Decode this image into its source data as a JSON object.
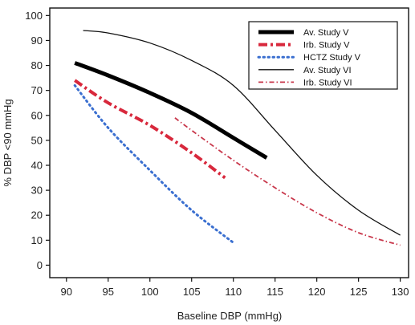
{
  "chart_data": {
    "type": "line",
    "xlabel": "Baseline DBP (mmHg)",
    "ylabel": "% DBP <90 mmHg",
    "xlim": [
      88,
      131
    ],
    "ylim": [
      -5,
      103
    ],
    "xticks": [
      90,
      95,
      100,
      105,
      110,
      115,
      120,
      125,
      130
    ],
    "yticks": [
      0,
      10,
      20,
      30,
      40,
      50,
      60,
      70,
      80,
      90,
      100
    ],
    "xtick_labels": [
      "90",
      "95",
      "100",
      "105",
      "110",
      "115",
      "120",
      "125",
      "130"
    ],
    "ytick_labels": [
      "0",
      "10",
      "20",
      "30",
      "40",
      "50",
      "60",
      "70",
      "80",
      "90",
      "100"
    ],
    "grid": false,
    "legend_position": "top-right",
    "series": [
      {
        "name": "Av. Study V",
        "color": "#000000",
        "style": "solid-thick",
        "x": [
          91,
          95,
          100,
          105,
          110,
          114
        ],
        "y": [
          81,
          76,
          69,
          61,
          51,
          43
        ]
      },
      {
        "name": "Irb. Study V",
        "color": "#d8283c",
        "style": "dash-dot-thick",
        "x": [
          91,
          95,
          100,
          105,
          109
        ],
        "y": [
          74,
          65,
          56,
          45,
          35
        ]
      },
      {
        "name": "HCTZ Study V",
        "color": "#3a6fd0",
        "style": "dotted",
        "x": [
          91,
          95,
          100,
          105,
          110
        ],
        "y": [
          72,
          55,
          38,
          22,
          9
        ]
      },
      {
        "name": "Av. Study VI",
        "color": "#111111",
        "style": "solid-thin",
        "x": [
          92,
          95,
          100,
          105,
          110,
          115,
          120,
          125,
          130
        ],
        "y": [
          94,
          93,
          89,
          82,
          72,
          54,
          36,
          22,
          12
        ]
      },
      {
        "name": "Irb. Study VI",
        "color": "#c8364a",
        "style": "dash-dot-thin",
        "x": [
          103,
          105,
          110,
          115,
          120,
          125,
          130
        ],
        "y": [
          59,
          54,
          42,
          31,
          21,
          13,
          8
        ]
      }
    ]
  }
}
